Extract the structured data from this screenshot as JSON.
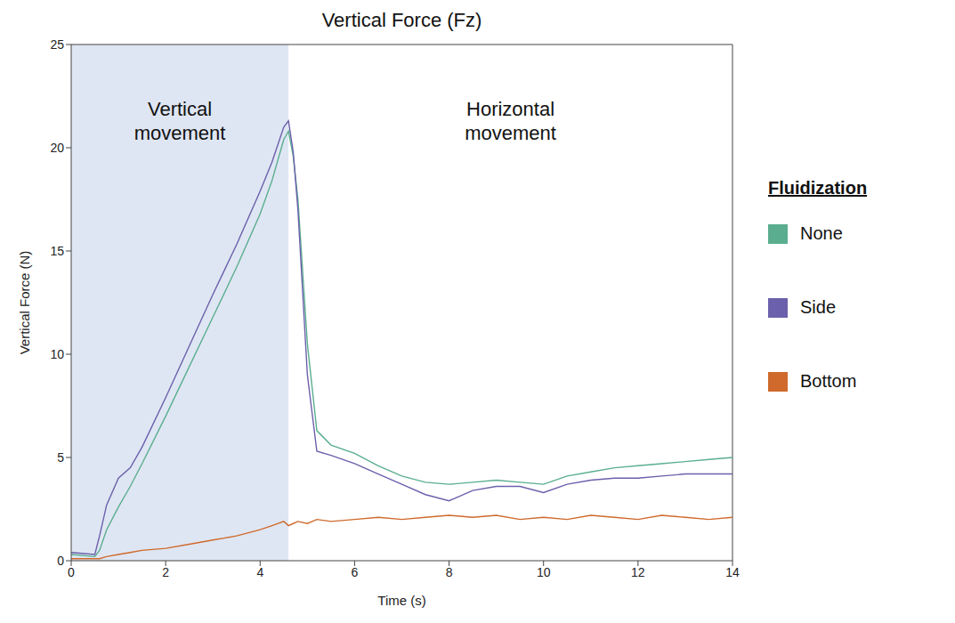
{
  "chart_data": {
    "type": "line",
    "title": "Vertical Force (Fz)",
    "x_label": "Time (s)",
    "y_label": "Vertical Force (N)",
    "x": [
      0,
      0.5,
      0.6,
      0.75,
      1,
      1.25,
      1.5,
      2,
      2.5,
      3,
      3.5,
      4,
      4.25,
      4.5,
      4.6,
      4.7,
      4.8,
      5,
      5.2,
      5.5,
      6,
      6.5,
      7,
      7.5,
      8,
      8.5,
      9,
      9.5,
      10,
      10.5,
      11,
      11.5,
      12,
      12.5,
      13,
      13.5,
      14
    ],
    "series": [
      {
        "name": "None",
        "color": "#5aae8f",
        "values": [
          0.3,
          0.2,
          0.5,
          1.5,
          2.6,
          3.6,
          4.7,
          7.0,
          9.4,
          11.8,
          14.2,
          16.8,
          18.4,
          20.4,
          20.8,
          19.6,
          17.5,
          10.5,
          6.3,
          5.6,
          5.2,
          4.6,
          4.1,
          3.8,
          3.7,
          3.8,
          3.9,
          3.8,
          3.7,
          4.1,
          4.3,
          4.5,
          4.6,
          4.7,
          4.8,
          4.9,
          5.0
        ]
      },
      {
        "name": "Side",
        "color": "#6b60ab",
        "values": [
          0.4,
          0.3,
          1.2,
          2.7,
          4.0,
          4.5,
          5.5,
          7.9,
          10.4,
          12.9,
          15.3,
          17.9,
          19.3,
          21.0,
          21.3,
          19.8,
          17.0,
          9.0,
          5.3,
          5.1,
          4.7,
          4.2,
          3.7,
          3.2,
          2.9,
          3.4,
          3.6,
          3.6,
          3.3,
          3.7,
          3.9,
          4.0,
          4.0,
          4.1,
          4.2,
          4.2,
          4.2
        ]
      },
      {
        "name": "Bottom",
        "color": "#cf6a2c",
        "values": [
          0.1,
          0.1,
          0.1,
          0.2,
          0.3,
          0.4,
          0.5,
          0.6,
          0.8,
          1.0,
          1.2,
          1.5,
          1.7,
          1.9,
          1.7,
          1.8,
          1.9,
          1.8,
          2.0,
          1.9,
          2.0,
          2.1,
          2.0,
          2.1,
          2.2,
          2.1,
          2.2,
          2.0,
          2.1,
          2.0,
          2.2,
          2.1,
          2.0,
          2.2,
          2.1,
          2.0,
          2.1
        ]
      }
    ],
    "xlim": [
      0,
      14
    ],
    "xticks": [
      0,
      2,
      4,
      6,
      8,
      10,
      12,
      14
    ],
    "ylim": [
      0,
      25
    ],
    "yticks": [
      0,
      5,
      10,
      15,
      20,
      25
    ],
    "grid": false,
    "legend": "right",
    "legend_title": "Fluidization",
    "regions": [
      {
        "label": "Vertical movement",
        "x": [
          0,
          4.6
        ],
        "color": "#dfe6f3"
      },
      {
        "label": "Horizontal movement",
        "x": [
          4.6,
          14
        ]
      }
    ]
  }
}
